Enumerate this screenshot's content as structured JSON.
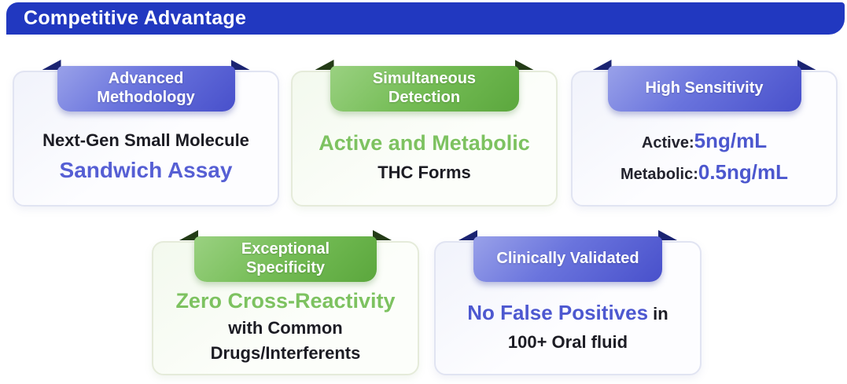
{
  "header": {
    "title": "Competitive Advantage"
  },
  "colors": {
    "header_bg": "#2138c0",
    "accent_blue": "#4c57ce",
    "accent_green": "#7dc260",
    "ribbon_blue_start": "#99a1e9",
    "ribbon_blue_end": "#4850cb",
    "ribbon_green_start": "#9ad181",
    "ribbon_green_end": "#5ba73d",
    "fold_blue": "#1b2472",
    "fold_green": "#243c17"
  },
  "cards": [
    {
      "id": "advanced-methodology",
      "theme": "blue",
      "badge": "Advanced\nMethodology",
      "line1": "Next-Gen Small Molecule",
      "line2": "Sandwich Assay"
    },
    {
      "id": "simultaneous-detection",
      "theme": "green",
      "badge": "Simultaneous\nDetection",
      "line1": "Active and Metabolic",
      "line2": "THC Forms"
    },
    {
      "id": "high-sensitivity",
      "theme": "blue",
      "badge": "High Sensitivity",
      "rows": [
        {
          "label": "Active:",
          "value": "5ng/mL"
        },
        {
          "label": "Metabolic:",
          "value": "0.5ng/mL"
        }
      ]
    },
    {
      "id": "exceptional-specificity",
      "theme": "green",
      "badge": "Exceptional\nSpecificity",
      "line1": "Zero Cross-Reactivity",
      "line2": "with Common",
      "line3": "Drugs/Interferents"
    },
    {
      "id": "clinically-validated",
      "theme": "blue",
      "badge": "Clinically Validated",
      "line1_highlight": "No False Positives",
      "line1_suffix": " in",
      "line2": "100+ Oral fluid"
    }
  ]
}
